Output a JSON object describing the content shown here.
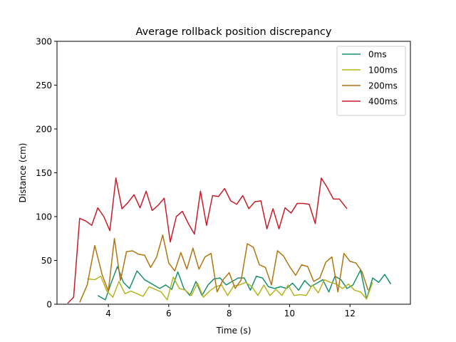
{
  "chart_data": {
    "type": "line",
    "title": "Average rollback position discrepancy",
    "xlabel": "Time (s)",
    "ylabel": "Distance (cm)",
    "xlim": [
      2.3,
      14.0
    ],
    "ylim": [
      0,
      300
    ],
    "xticks": [
      4,
      6,
      8,
      10,
      12
    ],
    "yticks": [
      0,
      50,
      100,
      150,
      200,
      250,
      300
    ],
    "grid": false,
    "legend_position": "top-right",
    "series": [
      {
        "name": "0ms",
        "color": "#1a9070",
        "x": [
          3.65,
          3.9,
          4.1,
          4.3,
          4.5,
          4.7,
          4.95,
          5.2,
          5.45,
          5.7,
          5.9,
          6.1,
          6.3,
          6.5,
          6.7,
          6.9,
          7.1,
          7.3,
          7.5,
          7.7,
          7.9,
          8.1,
          8.3,
          8.5,
          8.7,
          8.9,
          9.1,
          9.3,
          9.5,
          9.7,
          9.9,
          10.1,
          10.3,
          10.5,
          10.7,
          10.9,
          11.1,
          11.3,
          11.5,
          11.7,
          11.9,
          12.1,
          12.35,
          12.55,
          12.75,
          12.95,
          13.15,
          13.35
        ],
        "y": [
          10,
          5,
          25,
          43,
          25,
          18,
          38,
          28,
          23,
          18,
          22,
          17,
          37,
          18,
          10,
          26,
          10,
          22,
          29,
          30,
          22,
          26,
          30,
          30,
          16,
          32,
          30,
          20,
          18,
          20,
          18,
          24,
          16,
          27,
          20,
          24,
          28,
          14,
          32,
          28,
          18,
          22,
          39,
          6,
          30,
          25,
          34,
          23
        ]
      },
      {
        "name": "100ms",
        "color": "#b5b520",
        "x": [
          3.3,
          3.55,
          3.75,
          3.95,
          4.15,
          4.35,
          4.55,
          4.75,
          4.95,
          5.15,
          5.35,
          5.55,
          5.75,
          5.95,
          6.15,
          6.35,
          6.55,
          6.75,
          6.95,
          7.15,
          7.35,
          7.55,
          7.75,
          7.95,
          8.15,
          8.35,
          8.55,
          8.75,
          8.95,
          9.15,
          9.35,
          9.55,
          9.75,
          9.95,
          10.15,
          10.35,
          10.55,
          10.75,
          10.95,
          11.15,
          11.35,
          11.55,
          11.75,
          11.95,
          12.15,
          12.35,
          12.55,
          12.75
        ],
        "y": [
          29,
          28,
          32,
          15,
          8,
          26,
          12,
          15,
          12,
          9,
          20,
          17,
          14,
          5,
          31,
          18,
          16,
          10,
          24,
          8,
          15,
          20,
          22,
          10,
          21,
          22,
          25,
          20,
          10,
          22,
          10,
          17,
          10,
          22,
          10,
          11,
          10,
          22,
          13,
          28,
          25,
          23,
          18,
          23,
          16,
          14,
          6,
          25
        ]
      },
      {
        "name": "200ms",
        "color": "#b07510",
        "x": [
          3.05,
          3.3,
          3.55,
          3.8,
          4.0,
          4.2,
          4.4,
          4.6,
          4.8,
          5.0,
          5.2,
          5.4,
          5.6,
          5.8,
          6.0,
          6.2,
          6.4,
          6.6,
          6.8,
          7.0,
          7.2,
          7.4,
          7.6,
          7.8,
          8.0,
          8.2,
          8.4,
          8.6,
          8.8,
          9.0,
          9.2,
          9.4,
          9.6,
          9.8,
          10.0,
          10.2,
          10.4,
          10.6,
          10.8,
          11.0,
          11.2,
          11.4,
          11.6,
          11.8,
          12.0,
          12.2,
          12.4,
          12.6
        ],
        "y": [
          2,
          22,
          67,
          33,
          15,
          75,
          27,
          60,
          61,
          57,
          56,
          42,
          54,
          79,
          47,
          38,
          59,
          40,
          64,
          40,
          54,
          58,
          14,
          28,
          36,
          18,
          28,
          69,
          65,
          45,
          42,
          22,
          61,
          55,
          43,
          33,
          45,
          43,
          26,
          30,
          48,
          54,
          14,
          58,
          49,
          47,
          37,
          16
        ]
      },
      {
        "name": "400ms",
        "color": "#c81c28",
        "x": [
          2.65,
          2.85,
          3.05,
          3.25,
          3.45,
          3.65,
          3.85,
          4.05,
          4.25,
          4.45,
          4.65,
          4.85,
          5.05,
          5.25,
          5.45,
          5.65,
          5.85,
          6.05,
          6.25,
          6.45,
          6.65,
          6.85,
          7.05,
          7.25,
          7.45,
          7.65,
          7.85,
          8.05,
          8.25,
          8.45,
          8.65,
          8.85,
          9.05,
          9.25,
          9.45,
          9.65,
          9.85,
          10.05,
          10.25,
          10.45,
          10.65,
          10.85,
          11.05,
          11.25,
          11.45,
          11.65,
          11.9
        ],
        "y": [
          1,
          8,
          98,
          95,
          90,
          110,
          100,
          84,
          144,
          109,
          116,
          125,
          110,
          129,
          107,
          113,
          121,
          71,
          100,
          106,
          92,
          80,
          129,
          90,
          124,
          123,
          132,
          118,
          114,
          124,
          109,
          117,
          118,
          86,
          109,
          86,
          110,
          104,
          115,
          115,
          114,
          92,
          144,
          133,
          120,
          120,
          109
        ]
      }
    ]
  }
}
